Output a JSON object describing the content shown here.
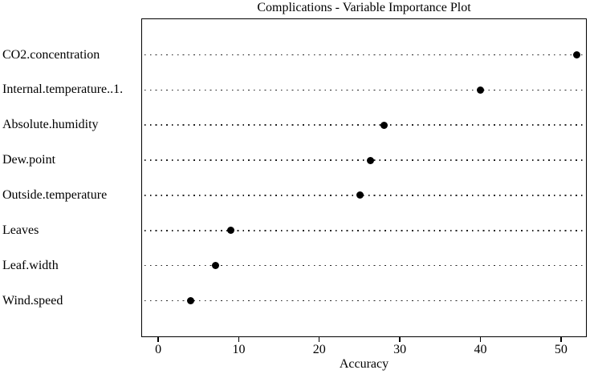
{
  "chart_data": {
    "type": "scatter",
    "variant": "dot-plot",
    "title": "Complications - Variable Importance Plot",
    "xlabel": "Accuracy",
    "ylabel": "",
    "categories": [
      "CO2.concentration",
      "Internal.temperature..1.",
      "Absolute.humidity",
      "Dew.point",
      "Outside.temperature",
      "Leaves",
      "Leaf.width",
      "Wind.speed"
    ],
    "values": [
      52,
      40,
      28,
      26.3,
      25.1,
      9,
      7.1,
      4
    ],
    "xticks": [
      0,
      10,
      20,
      30,
      40,
      50
    ],
    "xlim": [
      -2.1,
      53.2
    ],
    "grid": "horizontal-dotted",
    "legend": "none",
    "dot_color": "#000000",
    "grid_color": "#222222",
    "text_color": "#000000",
    "background": "#ffffff"
  }
}
